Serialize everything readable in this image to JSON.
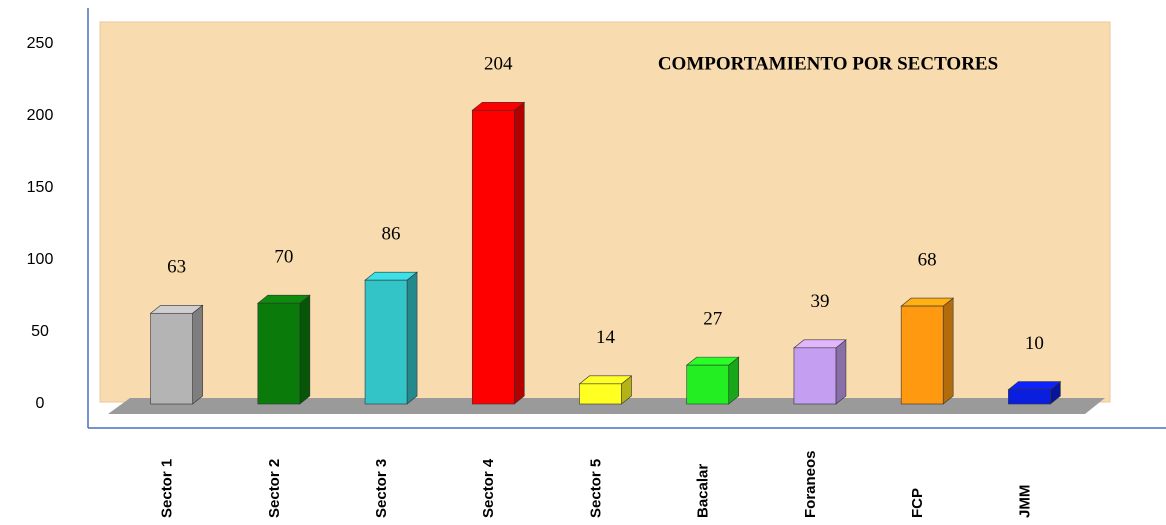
{
  "chart_data": {
    "type": "bar3d",
    "title": "COMPORTAMIENTO POR SECTORES",
    "categories": [
      "Sector 1",
      "Sector 2",
      "Sector 3",
      "Sector 4",
      "Sector 5",
      "Bacalar",
      "Foraneos",
      "FCP",
      "JMM"
    ],
    "values": [
      63,
      70,
      86,
      204,
      14,
      27,
      39,
      68,
      10
    ],
    "colors": [
      "#b4b4b4",
      "#0a7a0a",
      "#33c4c8",
      "#ff0000",
      "#ffff22",
      "#22ee22",
      "#c49ef0",
      "#ff9a10",
      "#0a1ee0"
    ],
    "ylim": [
      0,
      250
    ],
    "yticks": [
      0,
      50,
      100,
      150,
      200,
      250
    ],
    "grid": false
  }
}
